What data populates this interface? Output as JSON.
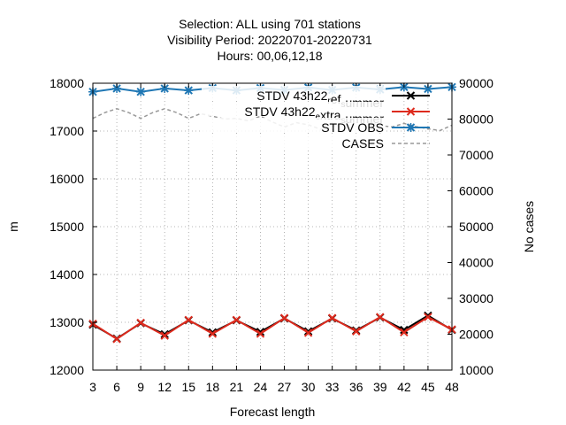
{
  "chart_data": {
    "type": "line",
    "title_lines": [
      "Selection: ALL using   701 stations",
      "Visibility   Period: 20220701-20220731",
      "Hours:  00,06,12,18"
    ],
    "xlabel": "Forecast length",
    "ylabel": "m",
    "y2label": "No cases",
    "x": [
      3,
      6,
      9,
      12,
      15,
      18,
      21,
      24,
      27,
      30,
      33,
      36,
      39,
      42,
      45,
      48
    ],
    "xlim": [
      3,
      48
    ],
    "ylim": [
      12000,
      18000
    ],
    "y2lim": [
      10000,
      90000
    ],
    "yticks": [
      12000,
      13000,
      14000,
      15000,
      16000,
      17000,
      18000
    ],
    "y2ticks": [
      10000,
      20000,
      30000,
      40000,
      50000,
      60000,
      70000,
      80000,
      90000
    ],
    "grid": true,
    "legend_position": "top-right",
    "series": [
      {
        "name": "STDV 43h22_ref_summer",
        "legend_parts": [
          [
            "STDV 43h22",
            "n"
          ],
          [
            "r",
            "sub"
          ],
          [
            "ef",
            "n"
          ],
          [
            "s",
            "sub"
          ],
          [
            "ummer",
            "n"
          ]
        ],
        "axis": "y",
        "color": "#000000",
        "marker": "x",
        "values": [
          12950,
          12660,
          12980,
          12750,
          13040,
          12790,
          13040,
          12800,
          13080,
          12810,
          13080,
          12830,
          13100,
          12840,
          13140,
          12840
        ]
      },
      {
        "name": "STDV 43h22_extra_summer",
        "legend_parts": [
          [
            "STDV 43h22",
            "n"
          ],
          [
            "e",
            "sub"
          ],
          [
            "xtra",
            "n"
          ],
          [
            "s",
            "sub"
          ],
          [
            "ummer",
            "n"
          ]
        ],
        "axis": "y",
        "color": "#dd2a1d",
        "marker": "x",
        "values": [
          12970,
          12650,
          12990,
          12720,
          13050,
          12760,
          13050,
          12760,
          13090,
          12780,
          13090,
          12810,
          13110,
          12790,
          13110,
          12850
        ]
      },
      {
        "name": "STDV OBS",
        "legend_parts": [
          [
            "STDV OBS",
            "n"
          ]
        ],
        "axis": "y",
        "color": "#1f77b4",
        "marker": "star",
        "values": [
          17820,
          17890,
          17820,
          17890,
          17850,
          17900,
          17850,
          17900,
          17860,
          17910,
          17860,
          17910,
          17870,
          17920,
          17880,
          17920
        ]
      },
      {
        "name": "CASES",
        "legend_parts": [
          [
            "CASES",
            "n"
          ]
        ],
        "axis": "y2",
        "color": "#999999",
        "marker": "none",
        "dashed": true,
        "x": [
          3,
          4.5,
          6,
          7.5,
          9,
          10.5,
          12,
          13.5,
          15,
          16.5,
          18,
          19.5,
          21,
          22.5,
          24,
          25.5,
          27,
          28.5,
          30,
          31.5,
          33,
          34.5,
          36,
          37.5,
          39,
          40.5,
          42,
          43.5,
          45,
          46.5,
          48
        ],
        "values": [
          80200,
          81800,
          82900,
          81800,
          80200,
          81800,
          82900,
          81800,
          80200,
          81500,
          80800,
          80000,
          80200,
          79500,
          80800,
          79200,
          77800,
          79000,
          78400,
          77200,
          78000,
          79000,
          80400,
          79200,
          78200,
          77800,
          78800,
          77900,
          77300,
          76800,
          78300
        ]
      }
    ]
  }
}
